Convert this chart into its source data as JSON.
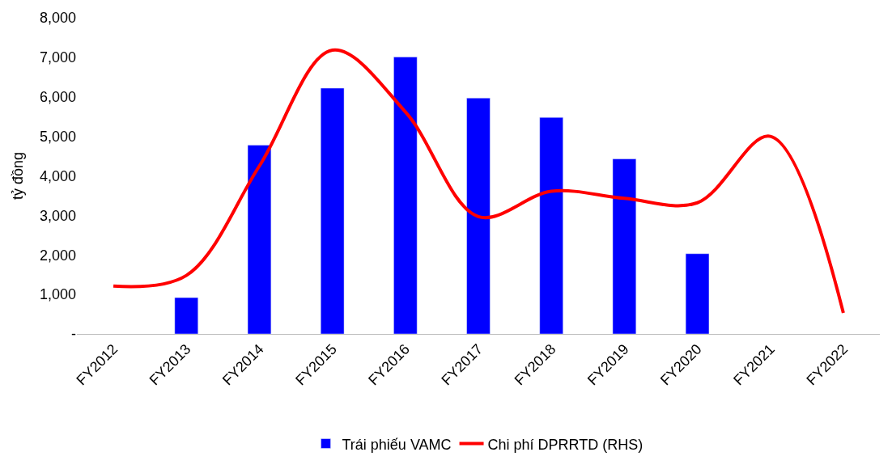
{
  "chart_data": {
    "type": "bar",
    "ylabel": "tỷ đồng",
    "categories": [
      "FY2012",
      "FY2013",
      "FY2014",
      "FY2015",
      "FY2016",
      "FY2017",
      "FY2018",
      "FY2019",
      "FY2020",
      "FY2021",
      "FY2022"
    ],
    "series": [
      {
        "name": "Trái phiếu VAMC",
        "color": "#0000ff",
        "values": [
          null,
          920,
          4780,
          6220,
          7010,
          5970,
          5480,
          4430,
          2030,
          null,
          null
        ]
      },
      {
        "name": "Chi phí DPRRTD (RHS)",
        "type": "line",
        "color": "#ff0000",
        "values": [
          1210,
          1480,
          4250,
          7180,
          5620,
          2970,
          3610,
          3430,
          3320,
          5000,
          530
        ]
      }
    ],
    "ylim": [
      0,
      8000
    ],
    "yticks": [
      {
        "value": 0,
        "label": "-"
      },
      {
        "value": 1000,
        "label": "1,000"
      },
      {
        "value": 2000,
        "label": "2,000"
      },
      {
        "value": 3000,
        "label": "3,000"
      },
      {
        "value": 4000,
        "label": "4,000"
      },
      {
        "value": 5000,
        "label": "5,000"
      },
      {
        "value": 6000,
        "label": "6,000"
      },
      {
        "value": 7000,
        "label": "7,000"
      },
      {
        "value": 8000,
        "label": "8,000"
      }
    ],
    "grid": false,
    "legend": "bottom",
    "marker": "none"
  }
}
